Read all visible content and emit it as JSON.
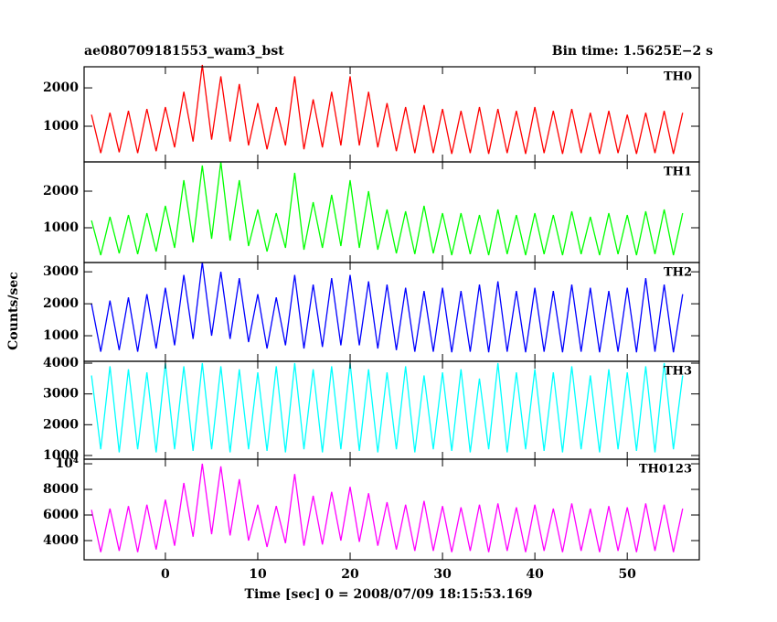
{
  "chart_data": [
    {
      "type": "line",
      "title": "ae080709181553_wam3_bst",
      "subtitle": "Bin time: 1.5625E−2 s",
      "label": "TH0",
      "color": "#ff0000",
      "x": [
        -8,
        -7,
        -6,
        -5,
        -4,
        -3,
        -2,
        -1,
        0,
        1,
        2,
        3,
        4,
        5,
        6,
        7,
        8,
        9,
        10,
        11,
        12,
        13,
        14,
        15,
        16,
        17,
        18,
        19,
        20,
        21,
        22,
        23,
        24,
        25,
        26,
        27,
        28,
        29,
        30,
        31,
        32,
        33,
        34,
        35,
        36,
        37,
        38,
        39,
        40,
        41,
        42,
        43,
        44,
        45,
        46,
        47,
        48,
        49,
        50,
        51,
        52,
        53,
        54,
        55,
        56
      ],
      "values": [
        1300,
        300,
        1350,
        320,
        1400,
        300,
        1450,
        350,
        1500,
        450,
        1900,
        600,
        2600,
        650,
        2300,
        600,
        2100,
        500,
        1600,
        400,
        1500,
        500,
        2300,
        400,
        1700,
        450,
        1900,
        500,
        2300,
        500,
        1900,
        450,
        1600,
        350,
        1500,
        300,
        1550,
        300,
        1450,
        280,
        1400,
        300,
        1500,
        280,
        1450,
        300,
        1400,
        280,
        1500,
        300,
        1400,
        280,
        1450,
        300,
        1350,
        280,
        1400,
        300,
        1300,
        280,
        1350,
        300,
        1400,
        280,
        1350
      ],
      "xlim": [
        -8.8,
        57.8
      ],
      "xticks": [
        0,
        10,
        20,
        30,
        40,
        50
      ],
      "ylim": [
        70,
        2550
      ],
      "yticks": [
        1000,
        2000
      ]
    },
    {
      "type": "line",
      "label": "TH1",
      "color": "#00ff00",
      "x": [
        -8,
        -7,
        -6,
        -5,
        -4,
        -3,
        -2,
        -1,
        0,
        1,
        2,
        3,
        4,
        5,
        6,
        7,
        8,
        9,
        10,
        11,
        12,
        13,
        14,
        15,
        16,
        17,
        18,
        19,
        20,
        21,
        22,
        23,
        24,
        25,
        26,
        27,
        28,
        29,
        30,
        31,
        32,
        33,
        34,
        35,
        36,
        37,
        38,
        39,
        40,
        41,
        42,
        43,
        44,
        45,
        46,
        47,
        48,
        49,
        50,
        51,
        52,
        53,
        54,
        55,
        56
      ],
      "values": [
        1200,
        250,
        1300,
        300,
        1350,
        280,
        1400,
        350,
        1600,
        450,
        2300,
        600,
        2700,
        700,
        2800,
        650,
        2300,
        500,
        1500,
        350,
        1400,
        450,
        2500,
        400,
        1700,
        450,
        1900,
        500,
        2300,
        450,
        2000,
        400,
        1500,
        300,
        1450,
        280,
        1600,
        300,
        1400,
        250,
        1400,
        280,
        1350,
        250,
        1500,
        280,
        1350,
        250,
        1400,
        280,
        1350,
        250,
        1450,
        280,
        1300,
        250,
        1400,
        280,
        1350,
        250,
        1450,
        280,
        1500,
        250,
        1400
      ],
      "xlim": [
        -8.8,
        57.8
      ],
      "xticks": [
        0,
        10,
        20,
        30,
        40,
        50
      ],
      "ylim": [
        50,
        2800
      ],
      "yticks": [
        1000,
        2000
      ]
    },
    {
      "type": "line",
      "label": "TH2",
      "ylabel": "Counts/sec",
      "color": "#0000ff",
      "x": [
        -8,
        -7,
        -6,
        -5,
        -4,
        -3,
        -2,
        -1,
        0,
        1,
        2,
        3,
        4,
        5,
        6,
        7,
        8,
        9,
        10,
        11,
        12,
        13,
        14,
        15,
        16,
        17,
        18,
        19,
        20,
        21,
        22,
        23,
        24,
        25,
        26,
        27,
        28,
        29,
        30,
        31,
        32,
        33,
        34,
        35,
        36,
        37,
        38,
        39,
        40,
        41,
        42,
        43,
        44,
        45,
        46,
        47,
        48,
        49,
        50,
        51,
        52,
        53,
        54,
        55,
        56
      ],
      "values": [
        2000,
        500,
        2100,
        550,
        2200,
        500,
        2300,
        600,
        2500,
        700,
        2900,
        900,
        3300,
        1000,
        3000,
        900,
        2800,
        800,
        2300,
        600,
        2200,
        700,
        2900,
        600,
        2600,
        650,
        2800,
        700,
        2900,
        700,
        2700,
        600,
        2600,
        550,
        2500,
        500,
        2400,
        500,
        2500,
        480,
        2400,
        500,
        2600,
        480,
        2700,
        500,
        2400,
        480,
        2500,
        500,
        2400,
        480,
        2600,
        500,
        2500,
        480,
        2400,
        500,
        2500,
        480,
        2800,
        500,
        2600,
        480,
        2300
      ],
      "xlim": [
        -8.8,
        57.8
      ],
      "xticks": [
        0,
        10,
        20,
        30,
        40,
        50
      ],
      "ylim": [
        200,
        3290
      ],
      "yticks": [
        1000,
        2000,
        3000
      ]
    },
    {
      "type": "line",
      "label": "TH3",
      "color": "#00ffff",
      "x": [
        -8,
        -7,
        -6,
        -5,
        -4,
        -3,
        -2,
        -1,
        0,
        1,
        2,
        3,
        4,
        5,
        6,
        7,
        8,
        9,
        10,
        11,
        12,
        13,
        14,
        15,
        16,
        17,
        18,
        19,
        20,
        21,
        22,
        23,
        24,
        25,
        26,
        27,
        28,
        29,
        30,
        31,
        32,
        33,
        34,
        35,
        36,
        37,
        38,
        39,
        40,
        41,
        42,
        43,
        44,
        45,
        46,
        47,
        48,
        49,
        50,
        51,
        52,
        53,
        54,
        55,
        56
      ],
      "values": [
        3600,
        1200,
        3900,
        1100,
        3800,
        1200,
        3700,
        1100,
        4000,
        1200,
        3900,
        1150,
        4000,
        1200,
        3900,
        1100,
        3800,
        1200,
        3700,
        1150,
        3900,
        1100,
        4000,
        1200,
        3800,
        1100,
        3900,
        1200,
        4000,
        1150,
        3800,
        1100,
        3700,
        1200,
        3900,
        1100,
        3600,
        1200,
        3700,
        1150,
        3800,
        1100,
        3500,
        1200,
        4000,
        1100,
        3700,
        1200,
        3800,
        1150,
        3700,
        1100,
        3900,
        1200,
        3600,
        1100,
        3800,
        1200,
        3700,
        1150,
        3900,
        1100,
        4000,
        1200,
        3600
      ],
      "xlim": [
        -8.8,
        57.8
      ],
      "xticks": [
        0,
        10,
        20,
        30,
        40,
        50
      ],
      "ylim": [
        880,
        4060
      ],
      "yticks": [
        1000,
        2000,
        3000,
        4000
      ]
    },
    {
      "type": "line",
      "label": "TH0123",
      "xlabel": "Time [sec] 0 = 2008/07/09 18:15:53.169",
      "color": "#ff00ff",
      "x": [
        -8,
        -7,
        -6,
        -5,
        -4,
        -3,
        -2,
        -1,
        0,
        1,
        2,
        3,
        4,
        5,
        6,
        7,
        8,
        9,
        10,
        11,
        12,
        13,
        14,
        15,
        16,
        17,
        18,
        19,
        20,
        21,
        22,
        23,
        24,
        25,
        26,
        27,
        28,
        29,
        30,
        31,
        32,
        33,
        34,
        35,
        36,
        37,
        38,
        39,
        40,
        41,
        42,
        43,
        44,
        45,
        46,
        47,
        48,
        49,
        50,
        51,
        52,
        53,
        54,
        55,
        56
      ],
      "values": [
        6400,
        3100,
        6500,
        3200,
        6700,
        3100,
        6800,
        3300,
        7200,
        3600,
        8500,
        4300,
        10000,
        4500,
        9800,
        4400,
        8800,
        4000,
        6800,
        3500,
        6700,
        3800,
        9200,
        3600,
        7500,
        3700,
        7800,
        4000,
        8200,
        3900,
        7700,
        3600,
        7000,
        3300,
        6800,
        3200,
        7100,
        3200,
        6700,
        3100,
        6600,
        3200,
        6800,
        3100,
        6900,
        3200,
        6600,
        3100,
        6800,
        3200,
        6500,
        3100,
        6900,
        3200,
        6500,
        3100,
        6700,
        3200,
        6600,
        3100,
        6900,
        3200,
        6800,
        3100,
        6500
      ],
      "xlim": [
        -8.8,
        57.8
      ],
      "xticks": [
        0,
        10,
        20,
        30,
        40,
        50
      ],
      "ylim": [
        2500,
        10360
      ],
      "yticks": [
        4000,
        6000,
        8000,
        {
          "value": 10000,
          "label": "10⁴"
        }
      ]
    }
  ]
}
